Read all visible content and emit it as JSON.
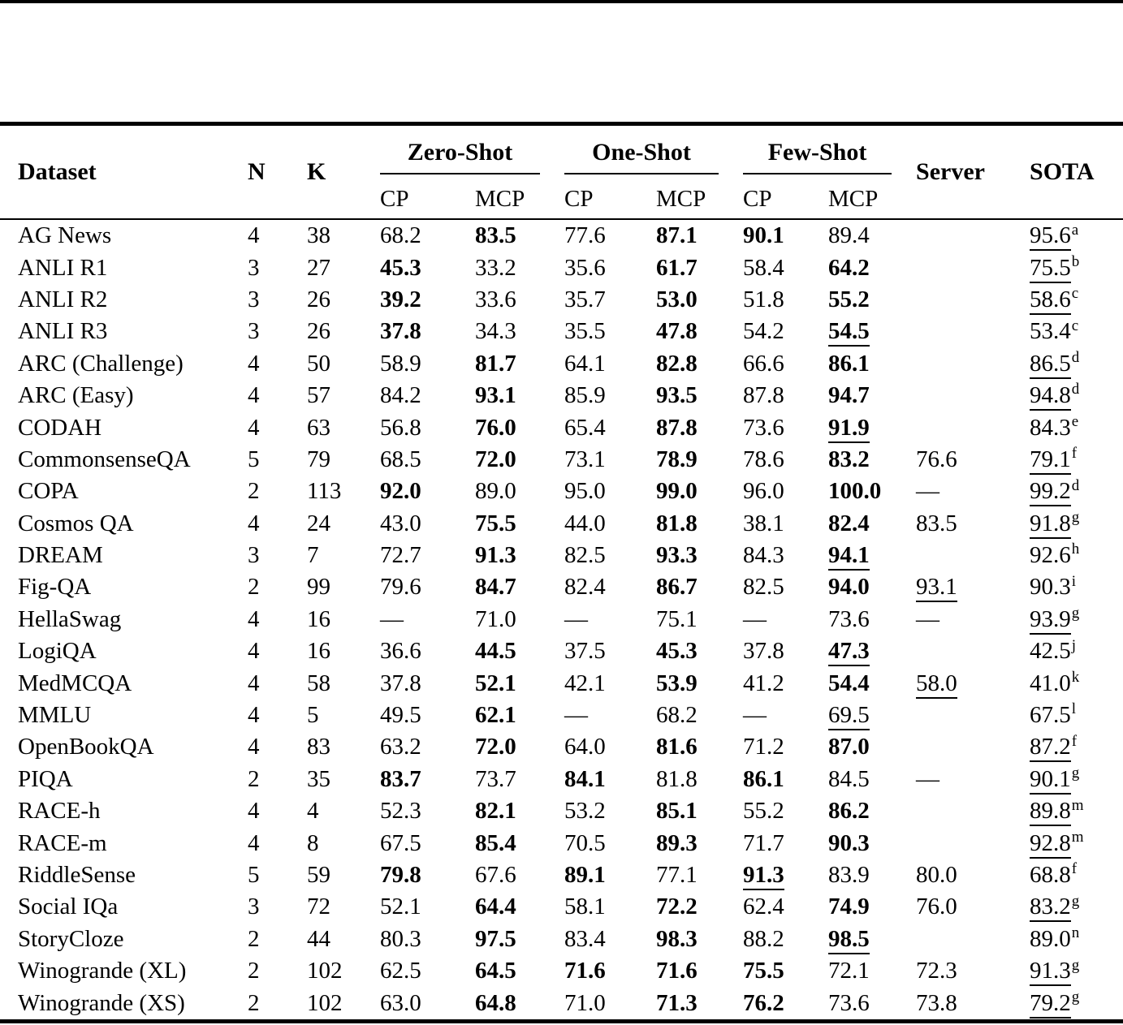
{
  "page": {
    "type": "academic-paper-table"
  },
  "table": {
    "header": {
      "dataset": "Dataset",
      "n": "N",
      "k": "K",
      "groups": [
        {
          "label": "Zero-Shot"
        },
        {
          "label": "One-Shot"
        },
        {
          "label": "Few-Shot"
        }
      ],
      "cp": "CP",
      "mcp": "MCP",
      "server": "Server",
      "sota": "SOTA"
    },
    "rows": [
      {
        "dataset": "AG News",
        "n": "4",
        "k": "38",
        "cells": [
          [
            "68.2",
            ""
          ],
          [
            "83.5",
            "b"
          ],
          [
            "77.6",
            ""
          ],
          [
            "87.1",
            "b"
          ],
          [
            "90.1",
            "b"
          ],
          [
            "89.4",
            ""
          ]
        ],
        "server": [
          "",
          ""
        ],
        "sota": [
          "95.6",
          "u",
          "a"
        ]
      },
      {
        "dataset": "ANLI R1",
        "n": "3",
        "k": "27",
        "cells": [
          [
            "45.3",
            "b"
          ],
          [
            "33.2",
            ""
          ],
          [
            "35.6",
            ""
          ],
          [
            "61.7",
            "b"
          ],
          [
            "58.4",
            ""
          ],
          [
            "64.2",
            "b"
          ]
        ],
        "server": [
          "",
          ""
        ],
        "sota": [
          "75.5",
          "u",
          "b"
        ]
      },
      {
        "dataset": "ANLI R2",
        "n": "3",
        "k": "26",
        "cells": [
          [
            "39.2",
            "b"
          ],
          [
            "33.6",
            ""
          ],
          [
            "35.7",
            ""
          ],
          [
            "53.0",
            "b"
          ],
          [
            "51.8",
            ""
          ],
          [
            "55.2",
            "b"
          ]
        ],
        "server": [
          "",
          ""
        ],
        "sota": [
          "58.6",
          "u",
          "c"
        ]
      },
      {
        "dataset": "ANLI R3",
        "n": "3",
        "k": "26",
        "cells": [
          [
            "37.8",
            "b"
          ],
          [
            "34.3",
            ""
          ],
          [
            "35.5",
            ""
          ],
          [
            "47.8",
            "b"
          ],
          [
            "54.2",
            ""
          ],
          [
            "54.5",
            "bu"
          ]
        ],
        "server": [
          "",
          ""
        ],
        "sota": [
          "53.4",
          "",
          "c"
        ]
      },
      {
        "dataset": "ARC (Challenge)",
        "n": "4",
        "k": "50",
        "cells": [
          [
            "58.9",
            ""
          ],
          [
            "81.7",
            "b"
          ],
          [
            "64.1",
            ""
          ],
          [
            "82.8",
            "b"
          ],
          [
            "66.6",
            ""
          ],
          [
            "86.1",
            "b"
          ]
        ],
        "server": [
          "",
          ""
        ],
        "sota": [
          "86.5",
          "u",
          "d"
        ]
      },
      {
        "dataset": "ARC (Easy)",
        "n": "4",
        "k": "57",
        "cells": [
          [
            "84.2",
            ""
          ],
          [
            "93.1",
            "b"
          ],
          [
            "85.9",
            ""
          ],
          [
            "93.5",
            "b"
          ],
          [
            "87.8",
            ""
          ],
          [
            "94.7",
            "b"
          ]
        ],
        "server": [
          "",
          ""
        ],
        "sota": [
          "94.8",
          "u",
          "d"
        ]
      },
      {
        "dataset": "CODAH",
        "n": "4",
        "k": "63",
        "cells": [
          [
            "56.8",
            ""
          ],
          [
            "76.0",
            "b"
          ],
          [
            "65.4",
            ""
          ],
          [
            "87.8",
            "b"
          ],
          [
            "73.6",
            ""
          ],
          [
            "91.9",
            "bu"
          ]
        ],
        "server": [
          "",
          ""
        ],
        "sota": [
          "84.3",
          "",
          "e"
        ]
      },
      {
        "dataset": "CommonsenseQA",
        "n": "5",
        "k": "79",
        "cells": [
          [
            "68.5",
            ""
          ],
          [
            "72.0",
            "b"
          ],
          [
            "73.1",
            ""
          ],
          [
            "78.9",
            "b"
          ],
          [
            "78.6",
            ""
          ],
          [
            "83.2",
            "b"
          ]
        ],
        "server": [
          "76.6",
          ""
        ],
        "sota": [
          "79.1",
          "u",
          "f"
        ]
      },
      {
        "dataset": "COPA",
        "n": "2",
        "k": "113",
        "cells": [
          [
            "92.0",
            "b"
          ],
          [
            "89.0",
            ""
          ],
          [
            "95.0",
            ""
          ],
          [
            "99.0",
            "b"
          ],
          [
            "96.0",
            ""
          ],
          [
            "100.0",
            "b"
          ]
        ],
        "server": [
          "—",
          ""
        ],
        "sota": [
          "99.2",
          "u",
          "d"
        ]
      },
      {
        "dataset": "Cosmos QA",
        "n": "4",
        "k": "24",
        "cells": [
          [
            "43.0",
            ""
          ],
          [
            "75.5",
            "b"
          ],
          [
            "44.0",
            ""
          ],
          [
            "81.8",
            "b"
          ],
          [
            "38.1",
            ""
          ],
          [
            "82.4",
            "b"
          ]
        ],
        "server": [
          "83.5",
          ""
        ],
        "sota": [
          "91.8",
          "u",
          "g"
        ]
      },
      {
        "dataset": "DREAM",
        "n": "3",
        "k": "7",
        "cells": [
          [
            "72.7",
            ""
          ],
          [
            "91.3",
            "b"
          ],
          [
            "82.5",
            ""
          ],
          [
            "93.3",
            "b"
          ],
          [
            "84.3",
            ""
          ],
          [
            "94.1",
            "bu"
          ]
        ],
        "server": [
          "",
          ""
        ],
        "sota": [
          "92.6",
          "",
          "h"
        ]
      },
      {
        "dataset": "Fig-QA",
        "n": "2",
        "k": "99",
        "cells": [
          [
            "79.6",
            ""
          ],
          [
            "84.7",
            "b"
          ],
          [
            "82.4",
            ""
          ],
          [
            "86.7",
            "b"
          ],
          [
            "82.5",
            ""
          ],
          [
            "94.0",
            "b"
          ]
        ],
        "server": [
          "93.1",
          "u"
        ],
        "sota": [
          "90.3",
          "",
          "i"
        ]
      },
      {
        "dataset": "HellaSwag",
        "n": "4",
        "k": "16",
        "cells": [
          [
            "—",
            ""
          ],
          [
            "71.0",
            ""
          ],
          [
            "—",
            ""
          ],
          [
            "75.1",
            ""
          ],
          [
            "—",
            ""
          ],
          [
            "73.6",
            ""
          ]
        ],
        "server": [
          "—",
          ""
        ],
        "sota": [
          "93.9",
          "u",
          "g"
        ]
      },
      {
        "dataset": "LogiQA",
        "n": "4",
        "k": "16",
        "cells": [
          [
            "36.6",
            ""
          ],
          [
            "44.5",
            "b"
          ],
          [
            "37.5",
            ""
          ],
          [
            "45.3",
            "b"
          ],
          [
            "37.8",
            ""
          ],
          [
            "47.3",
            "bu"
          ]
        ],
        "server": [
          "",
          ""
        ],
        "sota": [
          "42.5",
          "",
          "j"
        ]
      },
      {
        "dataset": "MedMCQA",
        "n": "4",
        "k": "58",
        "cells": [
          [
            "37.8",
            ""
          ],
          [
            "52.1",
            "b"
          ],
          [
            "42.1",
            ""
          ],
          [
            "53.9",
            "b"
          ],
          [
            "41.2",
            ""
          ],
          [
            "54.4",
            "b"
          ]
        ],
        "server": [
          "58.0",
          "u"
        ],
        "sota": [
          "41.0",
          "",
          "k"
        ]
      },
      {
        "dataset": "MMLU",
        "n": "4",
        "k": "5",
        "cells": [
          [
            "49.5",
            ""
          ],
          [
            "62.1",
            "b"
          ],
          [
            "—",
            ""
          ],
          [
            "68.2",
            ""
          ],
          [
            "—",
            ""
          ],
          [
            "69.5",
            "u"
          ]
        ],
        "server": [
          "",
          ""
        ],
        "sota": [
          "67.5",
          "",
          "l"
        ]
      },
      {
        "dataset": "OpenBookQA",
        "n": "4",
        "k": "83",
        "cells": [
          [
            "63.2",
            ""
          ],
          [
            "72.0",
            "b"
          ],
          [
            "64.0",
            ""
          ],
          [
            "81.6",
            "b"
          ],
          [
            "71.2",
            ""
          ],
          [
            "87.0",
            "b"
          ]
        ],
        "server": [
          "",
          ""
        ],
        "sota": [
          "87.2",
          "u",
          "f"
        ]
      },
      {
        "dataset": "PIQA",
        "n": "2",
        "k": "35",
        "cells": [
          [
            "83.7",
            "b"
          ],
          [
            "73.7",
            ""
          ],
          [
            "84.1",
            "b"
          ],
          [
            "81.8",
            ""
          ],
          [
            "86.1",
            "b"
          ],
          [
            "84.5",
            ""
          ]
        ],
        "server": [
          "—",
          ""
        ],
        "sota": [
          "90.1",
          "u",
          "g"
        ]
      },
      {
        "dataset": "RACE-h",
        "n": "4",
        "k": "4",
        "cells": [
          [
            "52.3",
            ""
          ],
          [
            "82.1",
            "b"
          ],
          [
            "53.2",
            ""
          ],
          [
            "85.1",
            "b"
          ],
          [
            "55.2",
            ""
          ],
          [
            "86.2",
            "b"
          ]
        ],
        "server": [
          "",
          ""
        ],
        "sota": [
          "89.8",
          "u",
          "m"
        ]
      },
      {
        "dataset": "RACE-m",
        "n": "4",
        "k": "8",
        "cells": [
          [
            "67.5",
            ""
          ],
          [
            "85.4",
            "b"
          ],
          [
            "70.5",
            ""
          ],
          [
            "89.3",
            "b"
          ],
          [
            "71.7",
            ""
          ],
          [
            "90.3",
            "b"
          ]
        ],
        "server": [
          "",
          ""
        ],
        "sota": [
          "92.8",
          "u",
          "m"
        ]
      },
      {
        "dataset": "RiddleSense",
        "n": "5",
        "k": "59",
        "cells": [
          [
            "79.8",
            "b"
          ],
          [
            "67.6",
            ""
          ],
          [
            "89.1",
            "b"
          ],
          [
            "77.1",
            ""
          ],
          [
            "91.3",
            "bu"
          ],
          [
            "83.9",
            ""
          ]
        ],
        "server": [
          "80.0",
          ""
        ],
        "sota": [
          "68.8",
          "",
          "f"
        ]
      },
      {
        "dataset": "Social IQa",
        "n": "3",
        "k": "72",
        "cells": [
          [
            "52.1",
            ""
          ],
          [
            "64.4",
            "b"
          ],
          [
            "58.1",
            ""
          ],
          [
            "72.2",
            "b"
          ],
          [
            "62.4",
            ""
          ],
          [
            "74.9",
            "b"
          ]
        ],
        "server": [
          "76.0",
          ""
        ],
        "sota": [
          "83.2",
          "u",
          "g"
        ]
      },
      {
        "dataset": "StoryCloze",
        "n": "2",
        "k": "44",
        "cells": [
          [
            "80.3",
            ""
          ],
          [
            "97.5",
            "b"
          ],
          [
            "83.4",
            ""
          ],
          [
            "98.3",
            "b"
          ],
          [
            "88.2",
            ""
          ],
          [
            "98.5",
            "bu"
          ]
        ],
        "server": [
          "",
          ""
        ],
        "sota": [
          "89.0",
          "",
          "n"
        ]
      },
      {
        "dataset": "Winogrande (XL)",
        "n": "2",
        "k": "102",
        "cells": [
          [
            "62.5",
            ""
          ],
          [
            "64.5",
            "b"
          ],
          [
            "71.6",
            "b"
          ],
          [
            "71.6",
            "b"
          ],
          [
            "75.5",
            "b"
          ],
          [
            "72.1",
            ""
          ]
        ],
        "server": [
          "72.3",
          ""
        ],
        "sota": [
          "91.3",
          "u",
          "g"
        ]
      },
      {
        "dataset": "Winogrande (XS)",
        "n": "2",
        "k": "102",
        "cells": [
          [
            "63.0",
            ""
          ],
          [
            "64.8",
            "b"
          ],
          [
            "71.0",
            ""
          ],
          [
            "71.3",
            "b"
          ],
          [
            "76.2",
            "b"
          ],
          [
            "73.6",
            ""
          ]
        ],
        "server": [
          "73.8",
          ""
        ],
        "sota": [
          "79.2",
          "u",
          "g"
        ]
      }
    ]
  }
}
